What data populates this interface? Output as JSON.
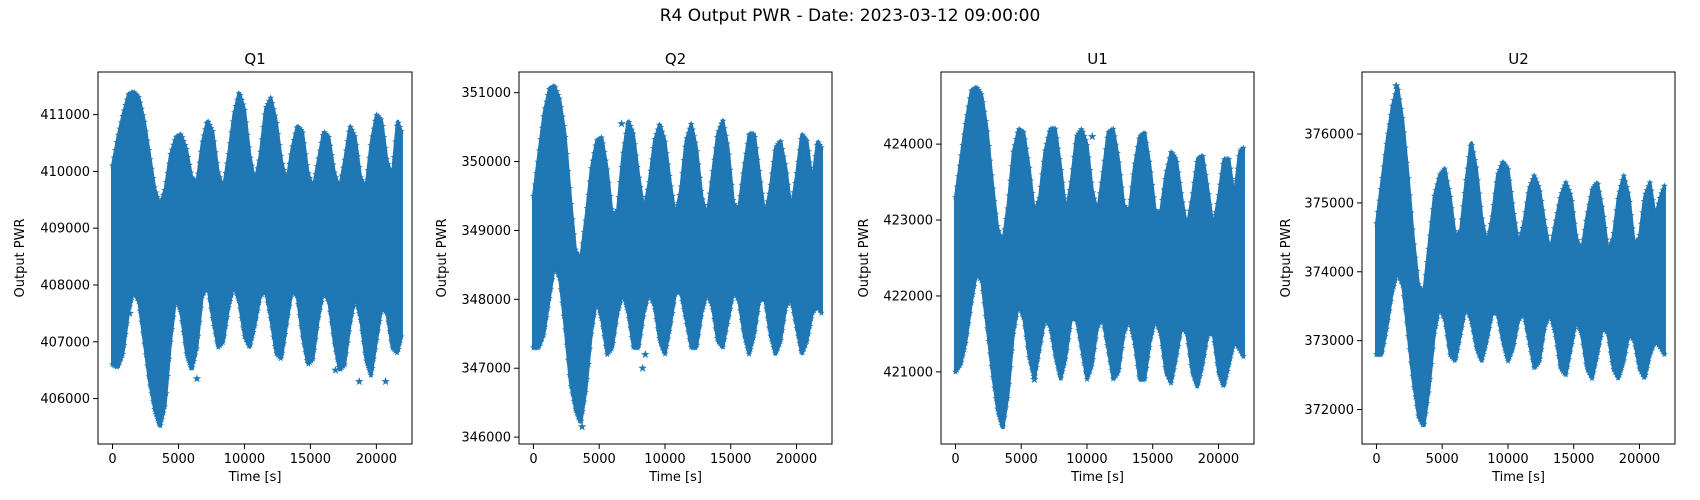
{
  "figure": {
    "title": "R4 Output PWR - Date: 2023-03-12 09:00:00"
  },
  "colors": {
    "series": "#1f77b4",
    "axes": "#000000",
    "background": "#ffffff"
  },
  "chart_data": [
    {
      "type": "scatter",
      "title": "Q1",
      "xlabel": "Time [s]",
      "ylabel": "Output PWR",
      "marker": "star",
      "xlim": [
        -1100,
        22700
      ],
      "ylim": [
        405200,
        411750
      ],
      "xticks": [
        0,
        5000,
        10000,
        15000,
        20000
      ],
      "yticks": [
        406000,
        407000,
        408000,
        409000,
        410000,
        411000
      ],
      "x_range": [
        0,
        21900
      ],
      "n_points": 21900,
      "upper_envelope": {
        "x": [
          0,
          400,
          800,
          1200,
          1600,
          2000,
          2400,
          2800,
          3200,
          3600,
          4000,
          4400,
          4800,
          5200,
          5600,
          6000,
          6400,
          6800,
          7200,
          7600,
          8000,
          8400,
          8800,
          9200,
          9600,
          10000,
          10400,
          10800,
          11200,
          11600,
          12000,
          12400,
          12800,
          13200,
          13600,
          14000,
          14400,
          14800,
          15200,
          15600,
          16000,
          16400,
          16800,
          17200,
          17600,
          18000,
          18400,
          18800,
          19200,
          19600,
          20000,
          20400,
          20800,
          21200,
          21600,
          21900
        ],
        "y": [
          410100,
          410600,
          411000,
          411350,
          411400,
          411300,
          410900,
          410300,
          409700,
          409400,
          409700,
          410300,
          410600,
          410650,
          410400,
          409900,
          409800,
          410500,
          410900,
          410700,
          410000,
          409700,
          410300,
          411000,
          411400,
          411100,
          410300,
          409800,
          410300,
          411100,
          411300,
          410900,
          410200,
          409800,
          410400,
          410800,
          410700,
          410000,
          409700,
          410200,
          410700,
          410600,
          410000,
          409700,
          410200,
          410800,
          410600,
          409900,
          409700,
          410500,
          411000,
          410900,
          410200,
          409900,
          410900,
          410700
        ]
      },
      "lower_envelope": {
        "x": [
          0,
          400,
          800,
          1200,
          1600,
          2000,
          2400,
          2800,
          3200,
          3600,
          4000,
          4400,
          4800,
          5200,
          5600,
          6000,
          6400,
          6800,
          7200,
          7600,
          8000,
          8400,
          8800,
          9200,
          9600,
          10000,
          10400,
          10800,
          11200,
          11600,
          12000,
          12400,
          12800,
          13200,
          13600,
          14000,
          14400,
          14800,
          15200,
          15600,
          16000,
          16400,
          16800,
          17200,
          17600,
          18000,
          18400,
          18800,
          19200,
          19600,
          20000,
          20400,
          20800,
          21200,
          21600,
          21900
        ],
        "y": [
          406600,
          406550,
          406800,
          407500,
          407900,
          407700,
          407000,
          406300,
          405800,
          405500,
          405900,
          407000,
          407800,
          407500,
          406800,
          406500,
          406900,
          407800,
          408000,
          407400,
          406900,
          407000,
          407600,
          408000,
          407700,
          407100,
          406900,
          407300,
          407800,
          407900,
          407400,
          406800,
          406700,
          407300,
          407900,
          407800,
          407100,
          406600,
          406700,
          407400,
          407900,
          407700,
          407000,
          406500,
          406600,
          407300,
          407800,
          407400,
          406700,
          406400,
          407000,
          407600,
          407500,
          406900,
          406800,
          407100
        ]
      },
      "outliers": {
        "x": [
          1300,
          6400,
          16900,
          18700,
          19300,
          20700
        ],
        "y": [
          407500,
          406350,
          406500,
          406300,
          406800,
          406300
        ]
      }
    },
    {
      "type": "scatter",
      "title": "Q2",
      "xlabel": "Time [s]",
      "ylabel": "Output PWR",
      "marker": "star",
      "xlim": [
        -1100,
        22700
      ],
      "ylim": [
        345900,
        351300
      ],
      "xticks": [
        0,
        5000,
        10000,
        15000,
        20000
      ],
      "yticks": [
        346000,
        347000,
        348000,
        349000,
        350000,
        351000
      ],
      "x_range": [
        0,
        21900
      ],
      "n_points": 21900,
      "upper_envelope": {
        "x": [
          0,
          400,
          800,
          1200,
          1600,
          2000,
          2400,
          2800,
          3200,
          3600,
          4000,
          4400,
          4800,
          5200,
          5600,
          6000,
          6400,
          6800,
          7200,
          7600,
          8000,
          8400,
          8800,
          9200,
          9600,
          10000,
          10400,
          10800,
          11200,
          11600,
          12000,
          12400,
          12800,
          13200,
          13600,
          14000,
          14400,
          14800,
          15200,
          15600,
          16000,
          16400,
          16800,
          17200,
          17600,
          18000,
          18400,
          18800,
          19200,
          19600,
          20000,
          20400,
          20800,
          21200,
          21600,
          21900
        ],
        "y": [
          349500,
          350100,
          350700,
          351050,
          351100,
          350900,
          350400,
          349500,
          348700,
          348600,
          349200,
          349900,
          350300,
          350350,
          349900,
          349200,
          349300,
          350100,
          350600,
          350400,
          349800,
          349300,
          349700,
          350300,
          350550,
          350300,
          349700,
          349200,
          349600,
          350300,
          350550,
          350200,
          349500,
          349200,
          349800,
          350400,
          350600,
          350200,
          349400,
          349300,
          349900,
          350400,
          350400,
          349800,
          349200,
          349600,
          350200,
          350300,
          349900,
          349300,
          349800,
          350400,
          350300,
          349700,
          350300,
          350200
        ]
      },
      "lower_envelope": {
        "x": [
          0,
          400,
          800,
          1200,
          1600,
          2000,
          2400,
          2800,
          3200,
          3600,
          4000,
          4400,
          4800,
          5200,
          5600,
          6000,
          6400,
          6800,
          7200,
          7600,
          8000,
          8400,
          8800,
          9200,
          9600,
          10000,
          10400,
          10800,
          11200,
          11600,
          12000,
          12400,
          12800,
          13200,
          13600,
          14000,
          14400,
          14800,
          15200,
          15600,
          16000,
          16400,
          16800,
          17200,
          17600,
          18000,
          18400,
          18800,
          19200,
          19600,
          20000,
          20400,
          20800,
          21200,
          21600,
          21900
        ],
        "y": [
          347300,
          347300,
          347500,
          348000,
          348500,
          348300,
          347600,
          346800,
          346400,
          346200,
          346700,
          347500,
          348000,
          347700,
          347200,
          347300,
          347800,
          348100,
          347800,
          347300,
          347300,
          347800,
          348100,
          347900,
          347400,
          347200,
          347600,
          348100,
          348100,
          347700,
          347300,
          347300,
          347800,
          348100,
          347900,
          347400,
          347300,
          347700,
          348100,
          348000,
          347500,
          347200,
          347500,
          348000,
          348000,
          347500,
          347200,
          347400,
          347900,
          348000,
          347600,
          347200,
          347400,
          347800,
          347900,
          347800
        ]
      },
      "outliers": {
        "x": [
          3700,
          8300,
          8500,
          6700
        ],
        "y": [
          346150,
          347000,
          347200,
          350550
        ]
      }
    },
    {
      "type": "scatter",
      "title": "U1",
      "xlabel": "Time [s]",
      "ylabel": "Output PWR",
      "marker": "star",
      "xlim": [
        -1100,
        22700
      ],
      "ylim": [
        420050,
        424950
      ],
      "xticks": [
        0,
        5000,
        10000,
        15000,
        20000
      ],
      "yticks": [
        421000,
        422000,
        423000,
        424000
      ],
      "x_range": [
        0,
        21900
      ],
      "n_points": 21900,
      "upper_envelope": {
        "x": [
          0,
          400,
          800,
          1200,
          1600,
          2000,
          2400,
          2800,
          3200,
          3600,
          4000,
          4400,
          4800,
          5200,
          5600,
          6000,
          6400,
          6800,
          7200,
          7600,
          8000,
          8400,
          8800,
          9200,
          9600,
          10000,
          10400,
          10800,
          11200,
          11600,
          12000,
          12400,
          12800,
          13200,
          13600,
          14000,
          14400,
          14800,
          15200,
          15600,
          16000,
          16400,
          16800,
          17200,
          17600,
          18000,
          18400,
          18800,
          19200,
          19600,
          20000,
          20400,
          20800,
          21200,
          21600,
          21900
        ],
        "y": [
          423300,
          423800,
          424300,
          424700,
          424750,
          424650,
          424200,
          423500,
          422900,
          422700,
          423200,
          423900,
          424200,
          424150,
          423700,
          423100,
          423300,
          423900,
          424200,
          424200,
          423700,
          423100,
          423500,
          424100,
          424200,
          424000,
          423400,
          423100,
          423600,
          424150,
          424200,
          423800,
          423200,
          423100,
          423700,
          424100,
          424150,
          423700,
          423100,
          423100,
          423600,
          423900,
          423800,
          423300,
          422900,
          423300,
          423800,
          423850,
          423400,
          422900,
          423300,
          423800,
          423800,
          423300,
          423900,
          423950
        ]
      },
      "lower_envelope": {
        "x": [
          0,
          400,
          800,
          1200,
          1600,
          2000,
          2400,
          2800,
          3200,
          3600,
          4000,
          4400,
          4800,
          5200,
          5600,
          6000,
          6400,
          6800,
          7200,
          7600,
          8000,
          8400,
          8800,
          9200,
          9600,
          10000,
          10400,
          10800,
          11200,
          11600,
          12000,
          12400,
          12800,
          13200,
          13600,
          14000,
          14400,
          14800,
          15200,
          15600,
          16000,
          16400,
          16800,
          17200,
          17600,
          18000,
          18400,
          18800,
          19200,
          19600,
          20000,
          20400,
          20800,
          21200,
          21600,
          21900
        ],
        "y": [
          421000,
          421100,
          421400,
          421900,
          422300,
          422200,
          421600,
          421000,
          420500,
          420250,
          420700,
          421500,
          421900,
          421700,
          421200,
          420900,
          421300,
          421700,
          421600,
          421200,
          420900,
          421200,
          421700,
          421700,
          421300,
          420900,
          421100,
          421600,
          421700,
          421300,
          420900,
          421000,
          421500,
          421700,
          421400,
          420900,
          420900,
          421400,
          421700,
          421500,
          421000,
          420850,
          421200,
          421600,
          421500,
          421000,
          420800,
          421100,
          421500,
          421500,
          421000,
          420800,
          421100,
          421400,
          421300,
          421200
        ]
      },
      "outliers": {
        "x": [
          10400,
          6000
        ],
        "y": [
          424100,
          420900
        ]
      }
    },
    {
      "type": "scatter",
      "title": "U2",
      "xlabel": "Time [s]",
      "ylabel": "Output PWR",
      "marker": "star",
      "xlim": [
        -1100,
        22700
      ],
      "ylim": [
        371500,
        376900
      ],
      "xticks": [
        0,
        5000,
        10000,
        15000,
        20000
      ],
      "yticks": [
        372000,
        373000,
        374000,
        375000,
        376000
      ],
      "x_range": [
        0,
        21900
      ],
      "n_points": 21900,
      "upper_envelope": {
        "x": [
          0,
          400,
          800,
          1200,
          1600,
          2000,
          2400,
          2800,
          3200,
          3600,
          4000,
          4400,
          4800,
          5200,
          5600,
          6000,
          6400,
          6800,
          7200,
          7600,
          8000,
          8400,
          8800,
          9200,
          9600,
          10000,
          10400,
          10800,
          11200,
          11600,
          12000,
          12400,
          12800,
          13200,
          13600,
          14000,
          14400,
          14800,
          15200,
          15600,
          16000,
          16400,
          16800,
          17200,
          17600,
          18000,
          18400,
          18800,
          19200,
          19600,
          20000,
          20400,
          20800,
          21200,
          21600,
          21900
        ],
        "y": [
          374700,
          375300,
          375900,
          376400,
          376700,
          376200,
          375400,
          374500,
          373800,
          373700,
          374400,
          375100,
          375400,
          375500,
          375100,
          374500,
          374600,
          375300,
          375900,
          375500,
          374800,
          374400,
          374800,
          375400,
          375600,
          375500,
          374900,
          374400,
          374700,
          375200,
          375400,
          375200,
          374700,
          374300,
          374700,
          375100,
          375300,
          375100,
          374500,
          374300,
          374800,
          375200,
          375300,
          374900,
          374300,
          374500,
          375100,
          375400,
          375100,
          374400,
          374500,
          375100,
          375300,
          374800,
          375100,
          375250
        ]
      },
      "lower_envelope": {
        "x": [
          0,
          400,
          800,
          1200,
          1600,
          2000,
          2400,
          2800,
          3200,
          3600,
          4000,
          4400,
          4800,
          5200,
          5600,
          6000,
          6400,
          6800,
          7200,
          7600,
          8000,
          8400,
          8800,
          9200,
          9600,
          10000,
          10400,
          10800,
          11200,
          11600,
          12000,
          12400,
          12800,
          13200,
          13600,
          14000,
          14400,
          14800,
          15200,
          15600,
          16000,
          16400,
          16800,
          17200,
          17600,
          18000,
          18400,
          18800,
          19200,
          19600,
          20000,
          20400,
          20800,
          21200,
          21600,
          21900
        ],
        "y": [
          372800,
          372800,
          373200,
          373700,
          374000,
          373800,
          373100,
          372400,
          371900,
          371750,
          372300,
          373100,
          373500,
          373300,
          372800,
          372700,
          373100,
          373500,
          373300,
          372900,
          372700,
          373000,
          373400,
          373400,
          373000,
          372700,
          372900,
          373300,
          373400,
          373000,
          372600,
          372700,
          373200,
          373400,
          373100,
          372600,
          372500,
          372900,
          373300,
          373100,
          372600,
          372450,
          372800,
          373200,
          373100,
          372600,
          372450,
          372700,
          373100,
          373000,
          372600,
          372450,
          372800,
          373000,
          372900,
          372800
        ]
      },
      "outliers": {
        "x": [
          1500,
          21700
        ],
        "y": [
          376700,
          374800
        ]
      }
    }
  ]
}
